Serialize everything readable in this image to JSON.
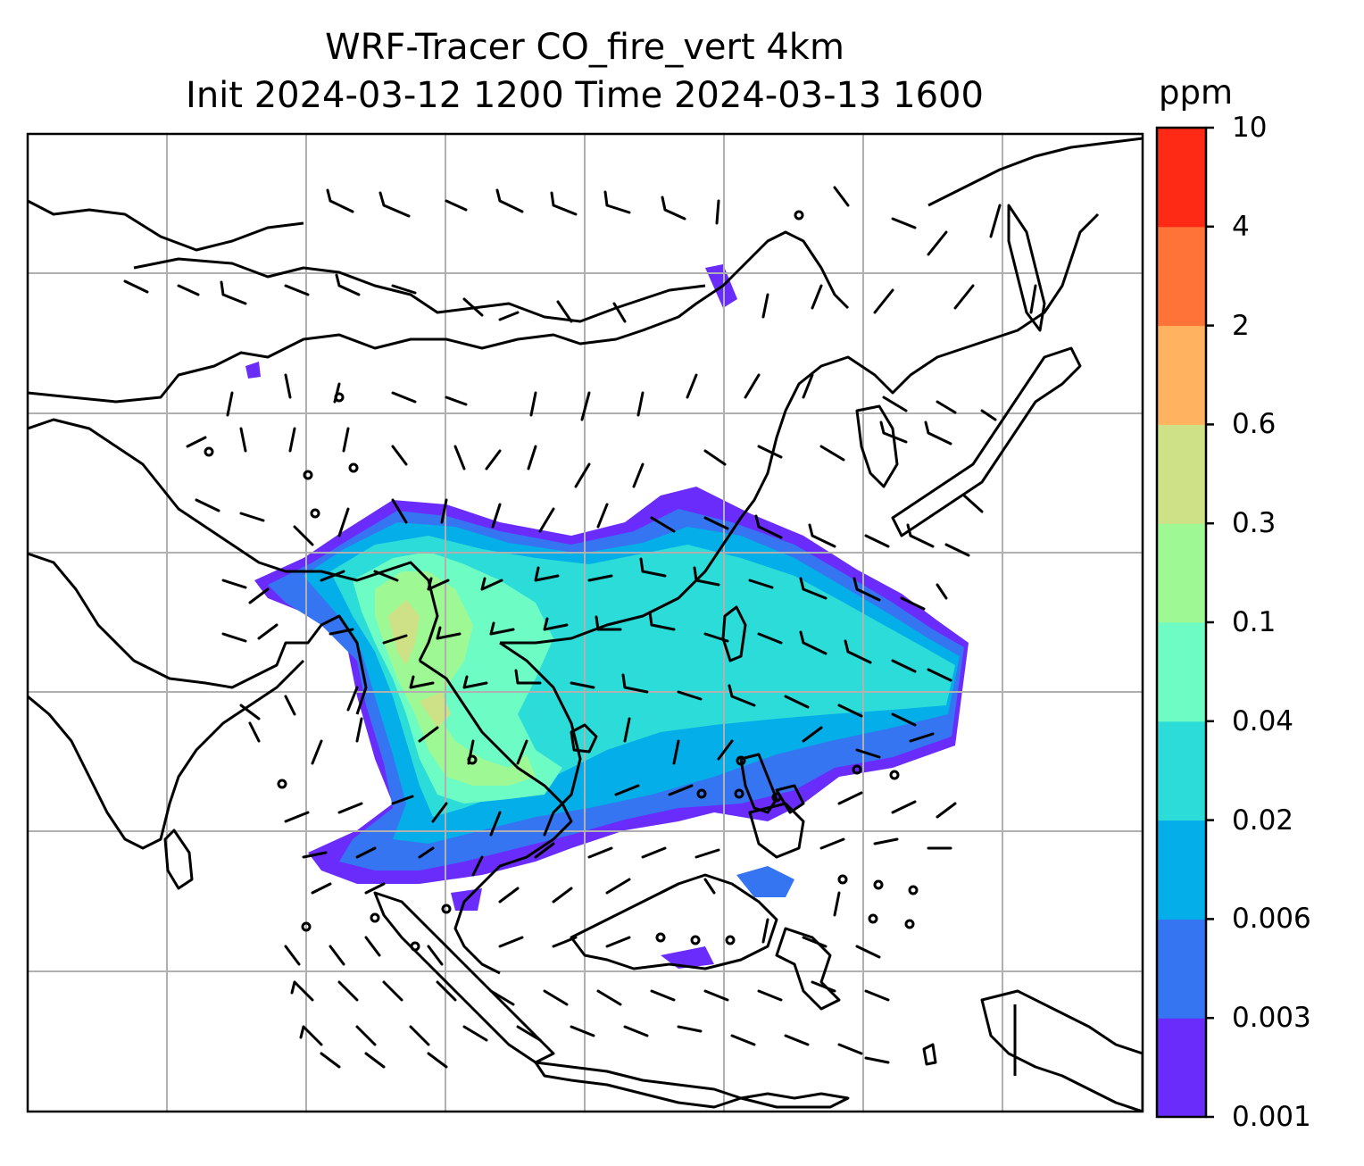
{
  "title": {
    "line1": "WRF-Tracer CO_fire_vert 4km",
    "line2": "Init 2024-03-12 1200 Time 2024-03-13 1600"
  },
  "colorbar": {
    "unit": "ppm",
    "levels": [
      "0.001",
      "0.003",
      "0.006",
      "0.02",
      "0.04",
      "0.1",
      "0.3",
      "0.6",
      "2",
      "4",
      "10"
    ],
    "colors": [
      "#6a2cfb",
      "#3575f1",
      "#04aee9",
      "#2cdcd8",
      "#6dfcc4",
      "#9ef994",
      "#cfe186",
      "#ffb360",
      "#ff7338",
      "#fe2a16"
    ]
  },
  "map": {
    "gridlines": true,
    "gridline_color": "#b0b0b0",
    "coastline_color": "#000000",
    "plume_color_scale": "rainbow",
    "overlay": "wind barbs",
    "region": "South and East Asia"
  }
}
